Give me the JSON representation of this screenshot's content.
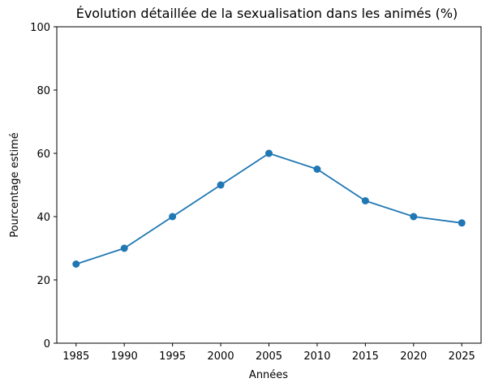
{
  "chart_data": {
    "type": "line",
    "title": "Évolution détaillée de la sexualisation dans les animés (%)",
    "xlabel": "Années",
    "ylabel": "Pourcentage estimé",
    "x": [
      1985,
      1990,
      1995,
      2000,
      2005,
      2010,
      2015,
      2020,
      2025
    ],
    "series": [
      {
        "values": [
          25,
          30,
          40,
          50,
          60,
          55,
          45,
          40,
          38
        ],
        "color": "#1f77b4",
        "marker": "circle"
      }
    ],
    "xlim": [
      1983,
      2027
    ],
    "ylim": [
      0,
      100
    ],
    "xticks": [
      "1985",
      "1990",
      "1995",
      "2000",
      "2005",
      "2010",
      "2015",
      "2020",
      "2025"
    ],
    "yticks": [
      "0",
      "20",
      "40",
      "60",
      "80",
      "100"
    ],
    "grid": false,
    "legend": "none"
  }
}
